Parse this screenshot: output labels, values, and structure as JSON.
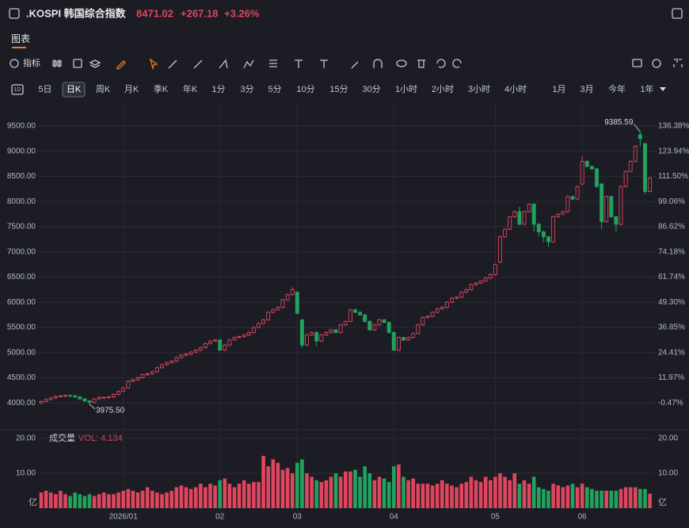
{
  "header": {
    "symbol": ".KOSPI 韩国综合指数",
    "price": "8471.02",
    "change": "+267.18",
    "change_pct": "+3.26%"
  },
  "tab": "图表",
  "indicator_button": "指标",
  "period_icon": "1D",
  "periods": [
    "5日",
    "日K",
    "周K",
    "月K",
    "季K",
    "年K",
    "1分",
    "3分",
    "5分",
    "10分",
    "15分",
    "30分",
    "1小时",
    "2小时",
    "3小时",
    "4小时",
    "1月",
    "3月",
    "今年",
    "1年"
  ],
  "active_period_index": 1,
  "chart_data": [
    {
      "type": "candlestick",
      "categories": [
        null,
        null,
        null,
        null,
        null,
        null,
        null,
        null,
        null,
        null,
        null,
        null,
        null,
        null,
        null,
        null,
        null,
        "2026/01",
        null,
        null,
        null,
        null,
        null,
        null,
        null,
        null,
        null,
        null,
        null,
        null,
        null,
        null,
        null,
        null,
        null,
        null,
        null,
        "02",
        null,
        null,
        null,
        null,
        null,
        null,
        null,
        null,
        null,
        null,
        null,
        null,
        null,
        null,
        null,
        "03",
        null,
        null,
        null,
        null,
        null,
        null,
        null,
        null,
        null,
        null,
        null,
        null,
        null,
        null,
        null,
        null,
        null,
        null,
        null,
        "04",
        null,
        null,
        null,
        null,
        null,
        null,
        null,
        null,
        null,
        null,
        null,
        null,
        null,
        null,
        null,
        null,
        null,
        null,
        null,
        null,
        "05",
        null,
        null,
        null,
        null,
        null,
        null,
        null,
        null,
        null,
        null,
        null,
        null,
        null,
        null,
        null,
        null,
        null,
        "06",
        null,
        null,
        null,
        null,
        null,
        null,
        null,
        null,
        null,
        null,
        null,
        null,
        null,
        null
      ],
      "open": [
        4000,
        4030,
        4070,
        4100,
        4130,
        4140,
        4150,
        4140,
        4120,
        4080,
        4040,
        4010,
        4080,
        4110,
        4110,
        4120,
        4170,
        4230,
        4300,
        4430,
        4460,
        4500,
        4560,
        4580,
        4620,
        4700,
        4760,
        4800,
        4830,
        4900,
        4950,
        4970,
        5010,
        5050,
        5100,
        5180,
        5230,
        5250,
        5050,
        5150,
        5250,
        5300,
        5320,
        5350,
        5400,
        5500,
        5580,
        5650,
        5800,
        5850,
        5900,
        6050,
        6150,
        6200,
        5650,
        5150,
        5350,
        5400,
        5230,
        5350,
        5400,
        5450,
        5400,
        5550,
        5620,
        5850,
        5800,
        5750,
        5620,
        5450,
        5550,
        5650,
        5600,
        5400,
        5050,
        5300,
        5250,
        5300,
        5380,
        5550,
        5700,
        5720,
        5800,
        5870,
        5900,
        6000,
        6080,
        6100,
        6200,
        6250,
        6350,
        6380,
        6420,
        6480,
        6550,
        6800,
        7300,
        7450,
        7700,
        7800,
        7550,
        7800,
        7950,
        7550,
        7400,
        7300,
        7200,
        7700,
        7750,
        7800,
        8100,
        8050,
        8350,
        8800,
        8700,
        8650,
        8350,
        7600,
        8100,
        7700,
        7550,
        8300,
        8600,
        8800,
        9330,
        9150,
        8200
      ],
      "high": [
        4050,
        4090,
        4120,
        4150,
        4160,
        4170,
        4170,
        4160,
        4140,
        4100,
        4060,
        4100,
        4130,
        4130,
        4140,
        4190,
        4250,
        4320,
        4450,
        4480,
        4520,
        4580,
        4600,
        4640,
        4720,
        4780,
        4820,
        4850,
        4920,
        4970,
        4990,
        5030,
        5070,
        5120,
        5200,
        5250,
        5270,
        5270,
        5170,
        5270,
        5320,
        5340,
        5370,
        5420,
        5520,
        5600,
        5670,
        5820,
        5870,
        5920,
        6070,
        6170,
        6300,
        6220,
        5670,
        5370,
        5420,
        5420,
        5370,
        5420,
        5470,
        5470,
        5570,
        5640,
        5870,
        5870,
        5820,
        5770,
        5640,
        5570,
        5670,
        5670,
        5620,
        5420,
        5320,
        5320,
        5320,
        5400,
        5570,
        5720,
        5740,
        5820,
        5890,
        5920,
        6020,
        6100,
        6120,
        6220,
        6270,
        6370,
        6400,
        6440,
        6500,
        6570,
        6770,
        7320,
        7470,
        7720,
        7820,
        7900,
        7820,
        7970,
        7970,
        7570,
        7420,
        7320,
        7720,
        7770,
        7820,
        8120,
        8120,
        8320,
        8900,
        8820,
        8720,
        8670,
        8370,
        8120,
        8120,
        7720,
        8320,
        8620,
        8820,
        9120,
        9385.59,
        9170,
        8490
      ],
      "low": [
        3980,
        4010,
        4050,
        4080,
        4110,
        4120,
        4120,
        4100,
        4060,
        4020,
        3975.5,
        3990,
        4060,
        4090,
        4090,
        4100,
        4150,
        4210,
        4280,
        4410,
        4440,
        4480,
        4540,
        4560,
        4600,
        4680,
        4740,
        4780,
        4810,
        4880,
        4930,
        4950,
        4990,
        5030,
        5080,
        5160,
        5210,
        5030,
        5030,
        5130,
        5230,
        5280,
        5300,
        5330,
        5380,
        5480,
        5560,
        5630,
        5780,
        5830,
        5880,
        6030,
        6130,
        5760,
        5100,
        5130,
        5330,
        5130,
        5210,
        5330,
        5380,
        5380,
        5380,
        5530,
        5600,
        5780,
        5730,
        5600,
        5430,
        5430,
        5530,
        5580,
        5380,
        5030,
        5030,
        5230,
        5230,
        5280,
        5360,
        5530,
        5680,
        5700,
        5780,
        5850,
        5880,
        5980,
        6060,
        6080,
        6180,
        6230,
        6330,
        6360,
        6400,
        6460,
        6530,
        6780,
        7280,
        7430,
        7680,
        7530,
        7530,
        7780,
        7400,
        7300,
        7200,
        7100,
        7180,
        7680,
        7730,
        7780,
        8030,
        8030,
        8330,
        8680,
        8630,
        8280,
        7450,
        7580,
        7680,
        7400,
        7530,
        8280,
        8580,
        8780,
        9100,
        8150,
        8180
      ],
      "close": [
        4030,
        4070,
        4100,
        4130,
        4140,
        4150,
        4140,
        4120,
        4080,
        4040,
        4010,
        4080,
        4110,
        4110,
        4120,
        4170,
        4230,
        4300,
        4430,
        4460,
        4500,
        4560,
        4580,
        4620,
        4700,
        4760,
        4800,
        4830,
        4900,
        4950,
        4970,
        5010,
        5050,
        5100,
        5180,
        5230,
        5250,
        5050,
        5150,
        5250,
        5300,
        5320,
        5350,
        5400,
        5500,
        5580,
        5650,
        5800,
        5850,
        5900,
        6050,
        6150,
        6250,
        5780,
        5150,
        5350,
        5400,
        5230,
        5350,
        5400,
        5450,
        5400,
        5550,
        5620,
        5850,
        5800,
        5750,
        5620,
        5450,
        5550,
        5650,
        5600,
        5400,
        5050,
        5300,
        5250,
        5300,
        5380,
        5550,
        5700,
        5720,
        5800,
        5870,
        5900,
        6000,
        6080,
        6100,
        6200,
        6250,
        6350,
        6380,
        6420,
        6480,
        6550,
        6750,
        7300,
        7450,
        7700,
        7800,
        7550,
        7800,
        7950,
        7550,
        7400,
        7300,
        7200,
        7700,
        7750,
        7800,
        8100,
        8050,
        8300,
        8800,
        8700,
        8650,
        8300,
        7600,
        8100,
        7700,
        7550,
        8300,
        8600,
        8800,
        9100,
        9250,
        8200,
        8471.02
      ],
      "up_color": "#e0455e",
      "down_color": "#1fa35e",
      "extreme_labels": {
        "high": "9385.59",
        "low": "3975.50"
      },
      "ylim": [
        3500,
        9800
      ],
      "yticks": [
        {
          "value": 4000,
          "label": "4000.00"
        },
        {
          "value": 4500,
          "label": "4500.00"
        },
        {
          "value": 5000,
          "label": "5000.00"
        },
        {
          "value": 5500,
          "label": "5500.00"
        },
        {
          "value": 6000,
          "label": "6000.00"
        },
        {
          "value": 6500,
          "label": "6500.00"
        },
        {
          "value": 7000,
          "label": "7000.00"
        },
        {
          "value": 7500,
          "label": "7500.00"
        },
        {
          "value": 8000,
          "label": "8000.00"
        },
        {
          "value": 8500,
          "label": "8500.00"
        },
        {
          "value": 9000,
          "label": "9000.00"
        },
        {
          "value": 9500,
          "label": "9500.00"
        }
      ],
      "y2lim": [
        -12.91,
        143.85
      ],
      "y2ticks": [
        {
          "value": -0.47,
          "label": "-0.47%"
        },
        {
          "value": 11.97,
          "label": "11.97%"
        },
        {
          "value": 24.41,
          "label": "24.41%"
        },
        {
          "value": 36.85,
          "label": "36.85%"
        },
        {
          "value": 49.3,
          "label": "49.30%"
        },
        {
          "value": 61.74,
          "label": "61.74%"
        },
        {
          "value": 74.18,
          "label": "74.18%"
        },
        {
          "value": 86.62,
          "label": "86.62%"
        },
        {
          "value": 99.06,
          "label": "99.06%"
        },
        {
          "value": 111.5,
          "label": "111.50%"
        },
        {
          "value": 123.94,
          "label": "123.94%"
        },
        {
          "value": 136.38,
          "label": "136.38%"
        }
      ],
      "grid": true
    },
    {
      "type": "bar",
      "name": "成交量",
      "label": "VOL: 4.134",
      "unit": "亿",
      "values": [
        4.5,
        5,
        4.5,
        4,
        5,
        4,
        3.5,
        4.5,
        4,
        3.5,
        4,
        3.5,
        4,
        4.5,
        4,
        4,
        4.5,
        5,
        5.5,
        5,
        4.5,
        5,
        6,
        5,
        4.5,
        4,
        4.5,
        5,
        6,
        6.5,
        6,
        5.5,
        6,
        7,
        6,
        7,
        6.5,
        8,
        8.5,
        7,
        6,
        7,
        8,
        7,
        7.5,
        7.5,
        15,
        12,
        14,
        13,
        11,
        11.5,
        10,
        13,
        14,
        10,
        9,
        8,
        7.5,
        8,
        9,
        10,
        9,
        10.5,
        10.5,
        11,
        9,
        12,
        10,
        8,
        9,
        8.5,
        7.5,
        12,
        12.5,
        9,
        8,
        8.5,
        7,
        7,
        7,
        6.5,
        7,
        8,
        7,
        6.5,
        6,
        7,
        7.5,
        9,
        8,
        7.5,
        9,
        8,
        9,
        10,
        9,
        8,
        10,
        7,
        8,
        7,
        9,
        6,
        5.5,
        5,
        7,
        6.5,
        6,
        6.5,
        7,
        6,
        7,
        6,
        5.5,
        5,
        5,
        5,
        5,
        5,
        5.5,
        6,
        6,
        6,
        5.5,
        5.5,
        4.134
      ],
      "ylim": [
        0,
        21.8
      ],
      "yticks": [
        {
          "value": 10,
          "label": "10.00"
        },
        {
          "value": 20,
          "label": "20.00"
        }
      ]
    }
  ]
}
